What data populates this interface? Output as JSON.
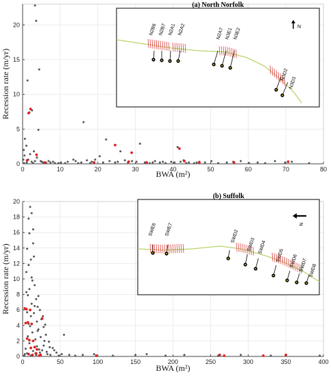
{
  "panels": [
    {
      "id": "north-norfolk",
      "chart_data": {
        "type": "scatter",
        "xlabel": "BWA (m²)",
        "ylabel": "Recession rate (m/yr)",
        "xlim": [
          0,
          80
        ],
        "ylim": [
          0,
          23
        ],
        "xticks": [
          0,
          10,
          20,
          30,
          40,
          50,
          60,
          70,
          80
        ],
        "yticks": [
          0,
          5,
          10,
          15,
          20
        ],
        "grid": true,
        "series": [
          {
            "color": "#555555",
            "points": [
              [
                3.3,
                22.8
              ],
              [
                3.6,
                20.6
              ],
              [
                2.5,
                7.7
              ],
              [
                1.8,
                7.4
              ],
              [
                4.4,
                13.6
              ],
              [
                1.3,
                12.0
              ],
              [
                1.0,
                2.6
              ],
              [
                0.6,
                3.6
              ],
              [
                0.3,
                2.0
              ],
              [
                0.5,
                1.2
              ],
              [
                0.2,
                0.6
              ],
              [
                1.5,
                0.6
              ],
              [
                2.0,
                1.4
              ],
              [
                2.4,
                0.3
              ],
              [
                3.0,
                1.8
              ],
              [
                3.8,
                0.9
              ],
              [
                4.2,
                4.9
              ],
              [
                4.8,
                0.4
              ],
              [
                5.5,
                0.2
              ],
              [
                6.3,
                0.1
              ],
              [
                7.4,
                0.2
              ],
              [
                8.6,
                0.1
              ],
              [
                10.2,
                0.2
              ],
              [
                12.0,
                0.3
              ],
              [
                13.5,
                0.6
              ],
              [
                14.8,
                0.1
              ],
              [
                15.6,
                0.2
              ],
              [
                16.2,
                6.0
              ],
              [
                17.1,
                0.5
              ],
              [
                18.4,
                0.3
              ],
              [
                19.3,
                0.6
              ],
              [
                20.5,
                1.1
              ],
              [
                21.4,
                0.2
              ],
              [
                22.2,
                3.5
              ],
              [
                23.1,
                0.4
              ],
              [
                24.6,
                0.2
              ],
              [
                26.0,
                1.8
              ],
              [
                27.2,
                0.5
              ],
              [
                28.0,
                0.2
              ],
              [
                29.1,
                0.4
              ],
              [
                30.3,
                0.3
              ],
              [
                31.2,
                2.9
              ],
              [
                32.5,
                0.2
              ],
              [
                33.8,
                0.1
              ],
              [
                35.2,
                0.4
              ],
              [
                36.5,
                0.2
              ],
              [
                38.0,
                0.1
              ],
              [
                39.5,
                0.3
              ],
              [
                40.4,
                0.2
              ],
              [
                41.2,
                2.4
              ],
              [
                42.0,
                0.3
              ],
              [
                42.8,
                0.5
              ],
              [
                44.2,
                0.2
              ],
              [
                45.6,
                0.1
              ],
              [
                47.0,
                0.3
              ],
              [
                48.5,
                0.2
              ],
              [
                50.2,
                0.4
              ],
              [
                52.0,
                0.1
              ],
              [
                54.3,
                0.2
              ],
              [
                56.0,
                0.3
              ],
              [
                58.0,
                0.4
              ],
              [
                60.2,
                0.1
              ],
              [
                62.5,
                0.2
              ],
              [
                64.5,
                0.1
              ],
              [
                67.1,
                0.4
              ],
              [
                69.8,
                0.2
              ],
              [
                71.6,
                0.3
              ],
              [
                76.2,
                0.1
              ],
              [
                0.4,
                0.1
              ],
              [
                1.1,
                0.2
              ],
              [
                2.8,
                0.1
              ],
              [
                3.3,
                0.4
              ],
              [
                5.1,
                0.3
              ],
              [
                6.9,
                0.4
              ],
              [
                8.1,
                0.3
              ],
              [
                9.5,
                0.1
              ],
              [
                11.3,
                0.1
              ],
              [
                14.1,
                0.4
              ],
              [
                18.0,
                0.1
              ],
              [
                25.3,
                0.3
              ],
              [
                34.6,
                0.2
              ],
              [
                37.3,
                0.3
              ],
              [
                43.5,
                0.1
              ],
              [
                46.3,
                0.2
              ]
            ]
          },
          {
            "color": "#e02020",
            "points": [
              [
                2.1,
                7.9
              ],
              [
                1.6,
                7.3
              ],
              [
                3.7,
                1.3
              ],
              [
                1.2,
                0.5
              ],
              [
                24.6,
                2.7
              ],
              [
                29.0,
                1.6
              ],
              [
                41.7,
                2.2
              ],
              [
                28.2,
                0.3
              ],
              [
                19.0,
                0.2
              ],
              [
                6.0,
                0.2
              ],
              [
                43.0,
                0.4
              ],
              [
                47.0,
                0.2
              ],
              [
                70.6,
                0.3
              ],
              [
                56.2,
                0.2
              ],
              [
                33.0,
                0.2
              ]
            ]
          }
        ]
      },
      "inset": {
        "title": "(a) North Norfolk",
        "north_label": "N",
        "labels": [
          "N2B6",
          "N2B7",
          "N2A1",
          "N2A2",
          "N2A7",
          "N3E1",
          "N3E2",
          "N3D2",
          "N3D3"
        ]
      }
    },
    {
      "id": "suffolk",
      "chart_data": {
        "type": "scatter",
        "xlabel": "BWA (m²)",
        "ylabel": "Recession rate (m/yr)",
        "xlim": [
          0,
          400
        ],
        "ylim": [
          0,
          20
        ],
        "xticks": [
          0,
          50,
          100,
          150,
          200,
          250,
          300,
          350,
          400
        ],
        "yticks": [
          0,
          2,
          4,
          6,
          8,
          10,
          12,
          14,
          16,
          18,
          20
        ],
        "grid": true,
        "series": [
          {
            "color": "#555555",
            "points": [
              [
                10,
                19.3
              ],
              [
                8,
                17.8
              ],
              [
                12,
                18.5
              ],
              [
                14,
                16.4
              ],
              [
                9,
                15.9
              ],
              [
                6,
                13.9
              ],
              [
                11,
                12.5
              ],
              [
                8,
                11.8
              ],
              [
                5,
                10.9
              ],
              [
                13,
                9.8
              ],
              [
                16,
                9.2
              ],
              [
                9,
                8.7
              ],
              [
                7,
                7.9
              ],
              [
                18,
                7.4
              ],
              [
                12,
                6.8
              ],
              [
                20,
                6.4
              ],
              [
                23,
                6.0
              ],
              [
                15,
                5.6
              ],
              [
                11,
                5.2
              ],
              [
                25,
                4.8
              ],
              [
                19,
                4.5
              ],
              [
                8,
                4.2
              ],
              [
                28,
                3.8
              ],
              [
                21,
                3.5
              ],
              [
                13,
                3.1
              ],
              [
                31,
                2.8
              ],
              [
                24,
                2.5
              ],
              [
                17,
                2.2
              ],
              [
                35,
                1.9
              ],
              [
                9,
                1.7
              ],
              [
                28,
                1.4
              ],
              [
                40,
                1.1
              ],
              [
                22,
                0.9
              ],
              [
                14,
                0.7
              ],
              [
                45,
                0.5
              ],
              [
                6,
                0.4
              ],
              [
                33,
                0.3
              ],
              [
                18,
                0.2
              ],
              [
                55,
                2.8
              ],
              [
                52,
                0.3
              ],
              [
                62,
                0.2
              ],
              [
                70,
                0.1
              ],
              [
                80,
                0.2
              ],
              [
                95,
                0.3
              ],
              [
                120,
                0.1
              ],
              [
                150,
                0.2
              ],
              [
                165,
                0.3
              ],
              [
                190,
                0.1
              ],
              [
                215,
                0.2
              ],
              [
                260,
                0.1
              ],
              [
                290,
                0.2
              ],
              [
                330,
                0.1
              ],
              [
                395,
                0.1
              ],
              [
                3,
                0.3
              ],
              [
                4,
                1.0
              ],
              [
                7,
                2.6
              ],
              [
                10,
                3.9
              ],
              [
                12,
                10.2
              ],
              [
                15,
                12.9
              ],
              [
                16,
                6.5
              ],
              [
                19,
                1.3
              ],
              [
                21,
                7.8
              ],
              [
                26,
                0.8
              ],
              [
                29,
                2.0
              ],
              [
                32,
                0.6
              ],
              [
                37,
                0.2
              ],
              [
                42,
                0.8
              ],
              [
                48,
                0.1
              ],
              [
                5,
                8.3
              ],
              [
                14,
                14.6
              ],
              [
                17,
                0.4
              ],
              [
                24,
                0.2
              ],
              [
                27,
                5.2
              ],
              [
                30,
                4.1
              ],
              [
                2,
                0.1
              ],
              [
                6,
                5.7
              ],
              [
                11,
                0.1
              ],
              [
                20,
                3.3
              ],
              [
                23,
                0.5
              ],
              [
                36,
                1.2
              ]
            ]
          },
          {
            "color": "#e02020",
            "points": [
              [
                3,
                6.2
              ],
              [
                5,
                6.1
              ],
              [
                10,
                6.0
              ],
              [
                7,
                4.4
              ],
              [
                12,
                4.2
              ],
              [
                4,
                4.3
              ],
              [
                9,
                2.1
              ],
              [
                14,
                2.0
              ],
              [
                6,
                2.3
              ],
              [
                11,
                1.1
              ],
              [
                16,
                1.2
              ],
              [
                19,
                0.9
              ],
              [
                8,
                0.3
              ],
              [
                13,
                0.2
              ],
              [
                18,
                0.4
              ],
              [
                22,
                0.1
              ],
              [
                98,
                0.1
              ],
              [
                262,
                0.2
              ],
              [
                268,
                0.1
              ],
              [
                320,
                0.1
              ],
              [
                350,
                0.2
              ],
              [
                26,
                4.9
              ],
              [
                24,
                0.2
              ]
            ]
          }
        ]
      },
      "inset": {
        "title": "(b) Suffolk",
        "north_label": "N",
        "labels": [
          "SWE6",
          "SWE7",
          "SWD2",
          "SWD3",
          "SWD4",
          "SWD5",
          "SWD6",
          "SWD7",
          "SWD8"
        ]
      }
    }
  ]
}
